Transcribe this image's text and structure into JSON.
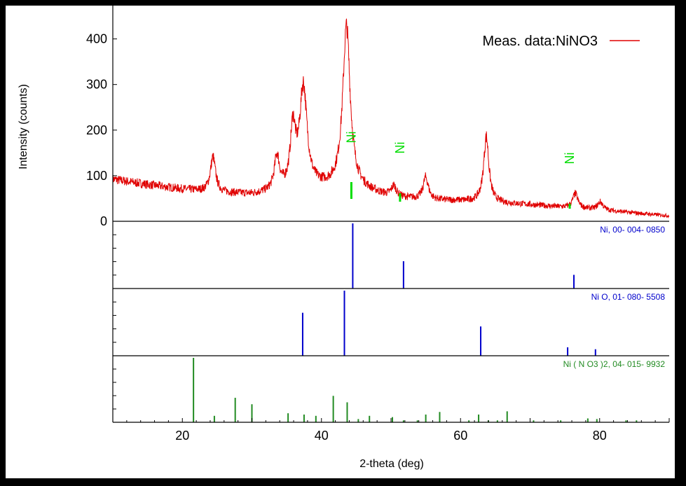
{
  "chart_data": {
    "type": "line",
    "title": "",
    "xlabel": "2-theta (deg)",
    "ylabel": "Intensity (counts)",
    "xlim": [
      10,
      90
    ],
    "ylim": [
      0,
      470
    ],
    "x_ticks": [
      20,
      40,
      60,
      80
    ],
    "y_ticks": [
      0,
      100,
      200,
      300,
      400
    ],
    "grid": false,
    "legend": {
      "position": "top-right",
      "entries": [
        "Meas. data:NiNO3"
      ]
    },
    "series": [
      {
        "name": "Meas. data:NiNO3",
        "color": "#e00000",
        "baseline": [
          [
            10,
            92
          ],
          [
            15,
            80
          ],
          [
            20,
            70
          ],
          [
            25,
            62
          ],
          [
            30,
            58
          ],
          [
            35,
            64
          ],
          [
            40,
            72
          ],
          [
            45,
            70
          ],
          [
            50,
            52
          ],
          [
            55,
            46
          ],
          [
            60,
            44
          ],
          [
            65,
            40
          ],
          [
            70,
            36
          ],
          [
            75,
            30
          ],
          [
            80,
            25
          ],
          [
            85,
            18
          ],
          [
            90,
            12
          ]
        ],
        "peaks": [
          {
            "x": 24.4,
            "y": 140
          },
          {
            "x": 33.6,
            "y": 138
          },
          {
            "x": 35.9,
            "y": 195
          },
          {
            "x": 37.4,
            "y": 290
          },
          {
            "x": 43.6,
            "y": 425
          },
          {
            "x": 50.4,
            "y": 75
          },
          {
            "x": 55.0,
            "y": 95
          },
          {
            "x": 63.7,
            "y": 185
          },
          {
            "x": 76.5,
            "y": 60
          },
          {
            "x": 80.1,
            "y": 42
          }
        ]
      }
    ],
    "phase_markers": [
      {
        "label": "Ni",
        "x": 44.3,
        "color": "#00dd00"
      },
      {
        "label": "Ni",
        "x": 51.3,
        "color": "#00dd00"
      },
      {
        "label": "Ni",
        "x": 75.7,
        "color": "#00dd00"
      }
    ],
    "reference_patterns": [
      {
        "name": "Ni, 00- 004- 0850",
        "color": "#0000cc",
        "sticks": [
          [
            44.5,
            100
          ],
          [
            51.8,
            42
          ],
          [
            76.3,
            21
          ]
        ]
      },
      {
        "name": "Ni O, 01- 080- 5508",
        "color": "#0000cc",
        "sticks": [
          [
            37.3,
            66
          ],
          [
            43.3,
            100
          ],
          [
            62.9,
            45
          ],
          [
            75.4,
            13
          ],
          [
            79.4,
            10
          ]
        ]
      },
      {
        "name": "Ni ( N O3 )2, 04- 015- 9932",
        "color": "#228b22",
        "sticks": [
          [
            21.6,
            100
          ],
          [
            24.6,
            10
          ],
          [
            27.6,
            38
          ],
          [
            30.0,
            28
          ],
          [
            35.2,
            14
          ],
          [
            37.5,
            12
          ],
          [
            39.2,
            10
          ],
          [
            41.7,
            41
          ],
          [
            43.7,
            31
          ],
          [
            45.3,
            5
          ],
          [
            46.9,
            10
          ],
          [
            50.2,
            8
          ],
          [
            51.8,
            3
          ],
          [
            53.8,
            3
          ],
          [
            55.0,
            12
          ],
          [
            57.0,
            16
          ],
          [
            61.2,
            3
          ],
          [
            62.6,
            12
          ],
          [
            64.0,
            3
          ],
          [
            65.3,
            3
          ],
          [
            66.7,
            17
          ],
          [
            70.5,
            3
          ],
          [
            74.4,
            3
          ],
          [
            78.3,
            6
          ],
          [
            79.6,
            5
          ],
          [
            83.8,
            3
          ],
          [
            85.3,
            3
          ]
        ]
      }
    ]
  }
}
